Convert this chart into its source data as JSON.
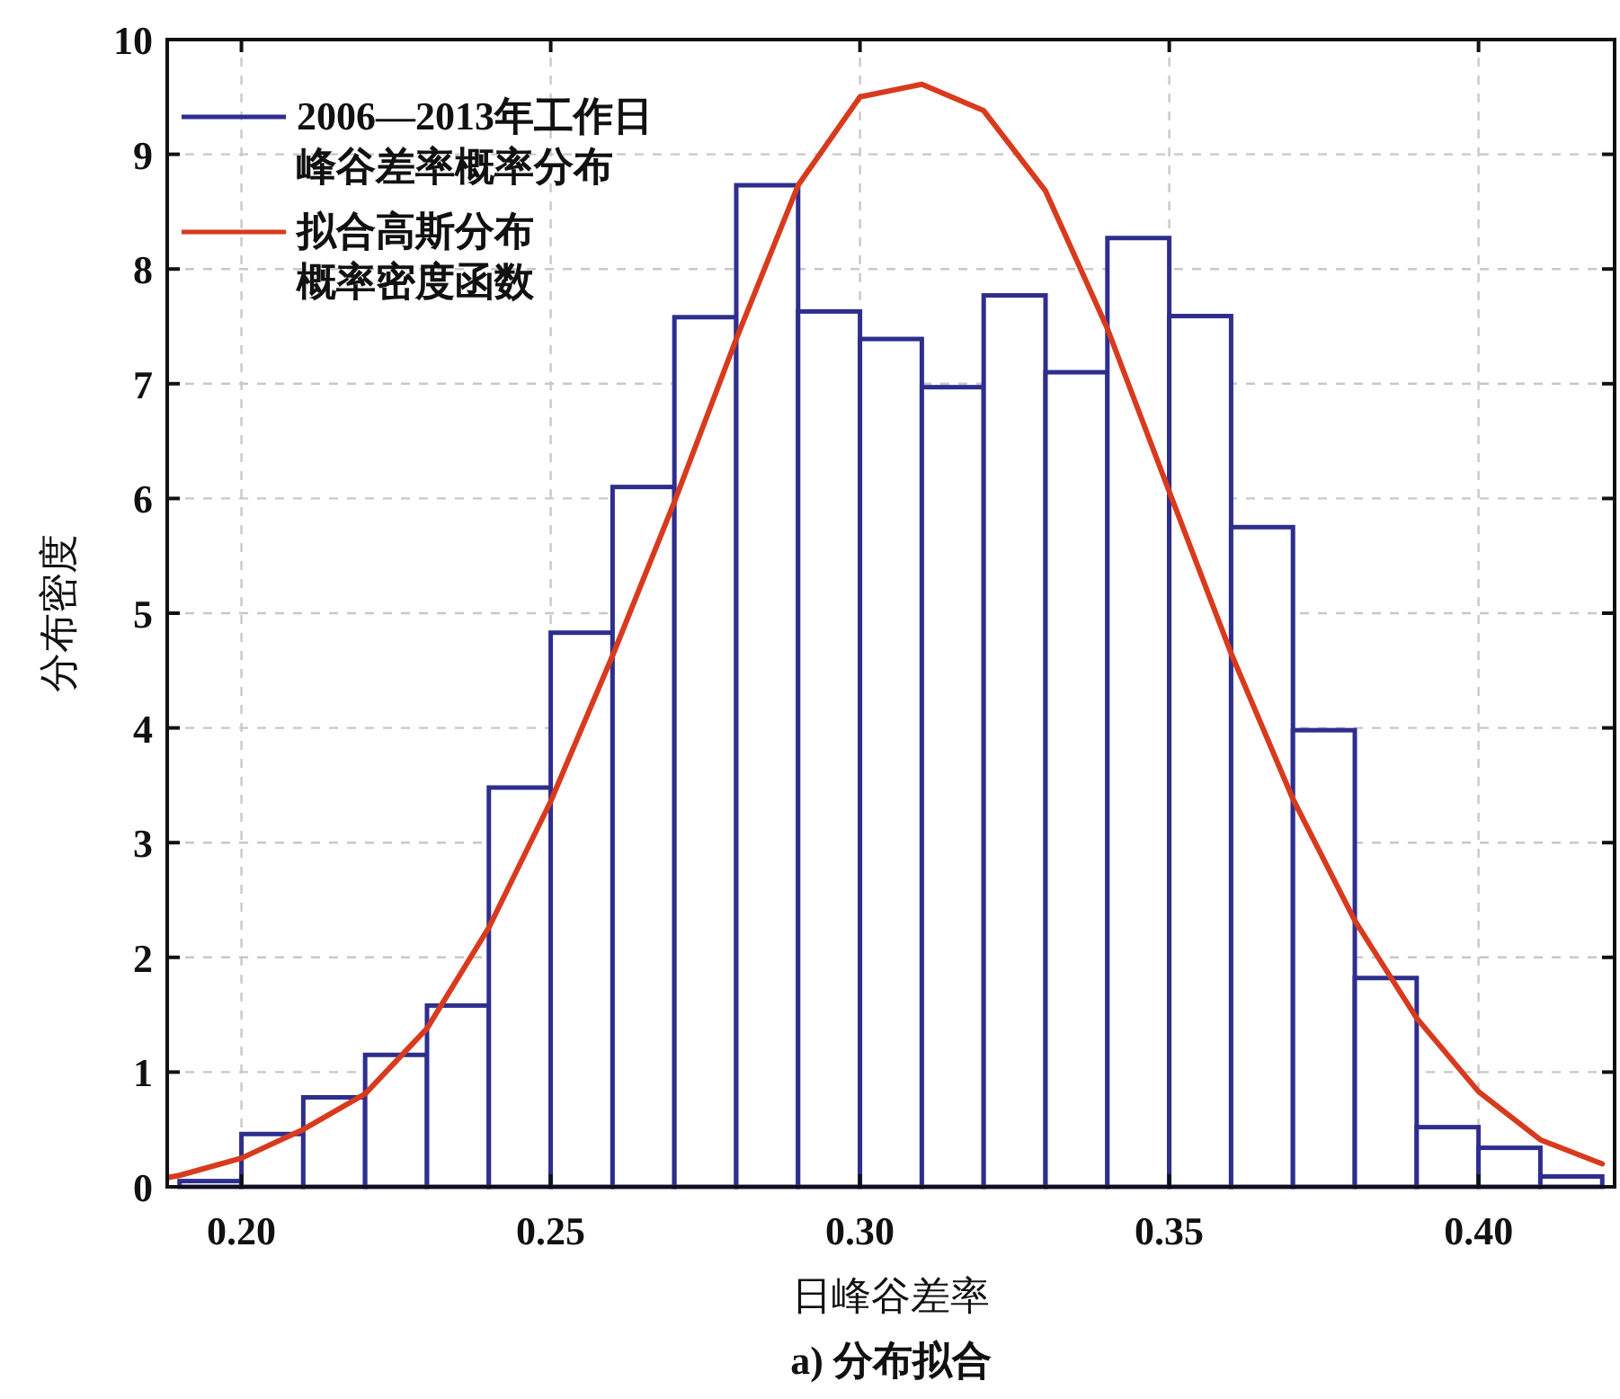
{
  "chart_data": {
    "type": "histogram",
    "xlabel": "日峰谷差率",
    "ylabel": "分布密度",
    "annotations": [
      "a) 分布拟合"
    ],
    "bins": [
      0.19,
      0.2,
      0.21,
      0.22,
      0.23,
      0.24,
      0.25,
      0.26,
      0.27,
      0.28,
      0.29,
      0.3,
      0.31,
      0.32,
      0.33,
      0.34,
      0.35,
      0.36,
      0.37,
      0.38,
      0.39,
      0.4,
      0.41,
      0.42
    ],
    "series": [
      {
        "name": "2006—2013年工作日峰谷差率概率分布",
        "color": "#2e2e8e",
        "values": [
          0.05,
          0.46,
          0.78,
          1.15,
          1.58,
          3.48,
          4.83,
          6.1,
          7.58,
          8.73,
          7.63,
          7.39,
          6.97,
          7.77,
          7.1,
          8.27,
          7.59,
          5.75,
          3.98,
          1.82,
          0.52,
          0.34,
          0.09
        ]
      },
      {
        "type": "line",
        "name": "拟合高斯分布概率密度函数",
        "color": "#d83a1e",
        "x": [
          0.188,
          0.19,
          0.2,
          0.21,
          0.22,
          0.23,
          0.24,
          0.25,
          0.26,
          0.27,
          0.28,
          0.29,
          0.3,
          0.31,
          0.32,
          0.33,
          0.34,
          0.35,
          0.36,
          0.37,
          0.38,
          0.39,
          0.4,
          0.41,
          0.42
        ],
        "values": [
          0.08,
          0.1,
          0.25,
          0.5,
          0.81,
          1.38,
          2.26,
          3.36,
          4.63,
          5.97,
          7.39,
          8.73,
          9.5,
          9.61,
          9.38,
          8.68,
          7.48,
          6.06,
          4.65,
          3.38,
          2.32,
          1.47,
          0.83,
          0.41,
          0.2
        ]
      }
    ],
    "xlim": [
      0.188,
      0.422
    ],
    "ylim": [
      0,
      10
    ],
    "xticks": [
      {
        "value": 0.2,
        "label": "0.20"
      },
      0.25,
      {
        "value": 0.3,
        "label": "0.30"
      },
      0.35,
      {
        "value": 0.4,
        "label": "0.40"
      }
    ],
    "yticks": [
      0,
      1,
      2,
      3,
      4,
      5,
      6,
      7,
      8,
      9,
      10
    ],
    "grid": true,
    "legend": "top left"
  }
}
